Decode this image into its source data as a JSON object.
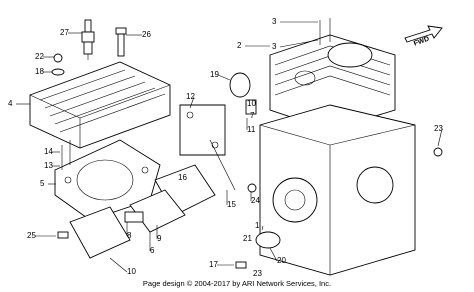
{
  "callouts": [
    "27",
    "26",
    "22",
    "18",
    "4",
    "3",
    "3",
    "2",
    "19",
    "12",
    "10",
    "7",
    "11",
    "14",
    "13",
    "5",
    "23",
    "24",
    "15",
    "16",
    "1",
    "21",
    "17",
    "23",
    "20",
    "25",
    "8",
    "9",
    "6",
    "10"
  ],
  "direction_label": "FWD",
  "footer": "Page design © 2004-2017 by ARI Network Services, Inc."
}
